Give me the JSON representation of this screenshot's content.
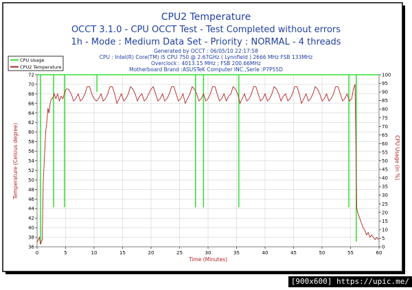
{
  "chart_data": {
    "type": "line",
    "title": "CPU2 Temperature",
    "subtitle_lines": [
      "OCCT 3.1.0 - CPU OCCT Test - Test Completed without errors",
      "1h - Mode : Medium Data Set - Priority : NORMAL - 4 threads"
    ],
    "info_lines": [
      "Generated by OCCT : 06/05/10 22:17:58",
      "CPU : Intel(R) Core(TM) i5 CPU 750 @ 2.67GHz ( Lynnfield ) 2666 MHz FSB 133MHz",
      "Overclock : 4013.15 MHz ; FSB 200.66MHz",
      "Motherboard Brand :ASUSTeK Computer INC.,Serie :P7P55D"
    ],
    "xlabel": "Time (Minutes)",
    "ylabel_left": "Temperature (Celsius degree)",
    "ylabel_right": "CPU Usage (in %)",
    "xlim": [
      0,
      60
    ],
    "ylim_left": [
      36,
      72
    ],
    "ylim_right": [
      0,
      100
    ],
    "x_ticks": [
      "0",
      "5",
      "10",
      "15",
      "20",
      "25",
      "30",
      "35",
      "40",
      "45",
      "50",
      "55",
      "60"
    ],
    "y_ticks_left": [
      "36",
      "38",
      "40",
      "42",
      "44",
      "46",
      "48",
      "50",
      "52",
      "54",
      "56",
      "58",
      "60",
      "62",
      "64",
      "66",
      "68",
      "70",
      "72"
    ],
    "y_ticks_right": [
      "0",
      "5",
      "10",
      "15",
      "20",
      "25",
      "30",
      "35",
      "40",
      "45",
      "50",
      "55",
      "60",
      "65",
      "70",
      "75",
      "80",
      "85",
      "90",
      "95",
      "100"
    ],
    "grid": true,
    "legend_position": "top-left",
    "series": [
      {
        "name": "CPU Usage",
        "axis": "right",
        "color": "#33dd33",
        "baseline": 100,
        "dips": [
          {
            "x": 0.6,
            "y": 2
          },
          {
            "x": 2.9,
            "y": 23
          },
          {
            "x": 4.8,
            "y": 23
          },
          {
            "x": 10.5,
            "y": 90
          },
          {
            "x": 27.8,
            "y": 23
          },
          {
            "x": 29.2,
            "y": 23
          },
          {
            "x": 35.4,
            "y": 23
          },
          {
            "x": 54.7,
            "y": 23
          },
          {
            "x": 56.0,
            "y": 3
          }
        ]
      },
      {
        "name": "CPU2 Temperature",
        "axis": "left",
        "color": "#b22222",
        "points": [
          [
            0.0,
            37
          ],
          [
            0.4,
            38
          ],
          [
            0.6,
            36.5
          ],
          [
            0.9,
            37.5
          ],
          [
            1.1,
            50
          ],
          [
            1.3,
            55
          ],
          [
            1.5,
            60
          ],
          [
            1.7,
            62
          ],
          [
            1.9,
            65
          ],
          [
            2.1,
            64
          ],
          [
            2.3,
            66
          ],
          [
            2.5,
            67
          ],
          [
            2.7,
            67
          ],
          [
            3.0,
            68
          ],
          [
            3.3,
            67
          ],
          [
            3.6,
            68
          ],
          [
            3.9,
            66.5
          ],
          [
            4.2,
            67.5
          ],
          [
            4.5,
            67
          ],
          [
            4.8,
            68
          ],
          [
            5.1,
            69
          ],
          [
            5.5,
            69
          ],
          [
            6.0,
            68
          ],
          [
            6.4,
            66.5
          ],
          [
            6.8,
            67
          ],
          [
            7.2,
            68
          ],
          [
            7.6,
            66.5
          ],
          [
            8.0,
            67
          ],
          [
            8.4,
            68
          ],
          [
            8.8,
            69.5
          ],
          [
            9.2,
            69.5
          ],
          [
            9.6,
            68
          ],
          [
            10.0,
            67
          ],
          [
            10.4,
            66.5
          ],
          [
            10.8,
            67
          ],
          [
            11.2,
            68
          ],
          [
            11.6,
            66.5
          ],
          [
            12.0,
            67
          ],
          [
            12.4,
            68
          ],
          [
            12.8,
            69.5
          ],
          [
            13.2,
            69.5
          ],
          [
            13.6,
            68
          ],
          [
            14.0,
            66
          ],
          [
            14.4,
            67
          ],
          [
            14.8,
            68
          ],
          [
            15.2,
            66.5
          ],
          [
            15.6,
            67
          ],
          [
            16.0,
            68
          ],
          [
            16.4,
            69.5
          ],
          [
            16.8,
            69
          ],
          [
            17.2,
            68
          ],
          [
            17.6,
            66.5
          ],
          [
            18.0,
            67.5
          ],
          [
            18.4,
            68
          ],
          [
            18.8,
            66.5
          ],
          [
            19.2,
            67
          ],
          [
            19.6,
            68
          ],
          [
            20.0,
            69
          ],
          [
            20.4,
            69.5
          ],
          [
            20.8,
            68
          ],
          [
            21.2,
            66.5
          ],
          [
            21.6,
            67
          ],
          [
            22.0,
            68
          ],
          [
            22.4,
            66.5
          ],
          [
            22.8,
            67
          ],
          [
            23.2,
            68
          ],
          [
            23.6,
            69.5
          ],
          [
            24.0,
            69.5
          ],
          [
            24.4,
            68
          ],
          [
            24.8,
            66.5
          ],
          [
            25.2,
            67
          ],
          [
            25.6,
            68
          ],
          [
            26.0,
            66
          ],
          [
            26.4,
            67
          ],
          [
            26.8,
            68
          ],
          [
            27.2,
            69.5
          ],
          [
            27.6,
            69
          ],
          [
            28.0,
            68
          ],
          [
            28.4,
            66.5
          ],
          [
            28.8,
            67
          ],
          [
            29.2,
            68
          ],
          [
            29.6,
            66.5
          ],
          [
            30.0,
            67
          ],
          [
            30.4,
            68
          ],
          [
            30.8,
            69.5
          ],
          [
            31.2,
            69.5
          ],
          [
            31.6,
            68
          ],
          [
            32.0,
            66.5
          ],
          [
            32.4,
            67
          ],
          [
            32.8,
            68
          ],
          [
            33.2,
            66.5
          ],
          [
            33.6,
            67.5
          ],
          [
            34.0,
            68
          ],
          [
            34.4,
            69.5
          ],
          [
            34.8,
            69
          ],
          [
            35.2,
            68
          ],
          [
            35.6,
            66
          ],
          [
            36.0,
            67
          ],
          [
            36.4,
            68
          ],
          [
            36.8,
            66.5
          ],
          [
            37.2,
            67
          ],
          [
            37.6,
            68
          ],
          [
            38.0,
            69.5
          ],
          [
            38.4,
            69.5
          ],
          [
            38.8,
            68
          ],
          [
            39.2,
            66.5
          ],
          [
            39.6,
            67
          ],
          [
            40.0,
            68
          ],
          [
            40.4,
            66.5
          ],
          [
            40.8,
            67
          ],
          [
            41.2,
            68
          ],
          [
            41.6,
            69.5
          ],
          [
            42.0,
            69
          ],
          [
            42.4,
            68
          ],
          [
            42.8,
            66.5
          ],
          [
            43.2,
            67.5
          ],
          [
            43.6,
            68
          ],
          [
            44.0,
            66.5
          ],
          [
            44.4,
            67
          ],
          [
            44.8,
            68
          ],
          [
            45.2,
            69.5
          ],
          [
            45.6,
            69.5
          ],
          [
            46.0,
            68
          ],
          [
            46.4,
            66
          ],
          [
            46.8,
            67
          ],
          [
            47.2,
            68
          ],
          [
            47.6,
            66.5
          ],
          [
            48.0,
            67
          ],
          [
            48.4,
            68
          ],
          [
            48.8,
            69.5
          ],
          [
            49.2,
            69
          ],
          [
            49.6,
            68
          ],
          [
            50.0,
            66.5
          ],
          [
            50.4,
            67
          ],
          [
            50.8,
            68
          ],
          [
            51.2,
            66.5
          ],
          [
            51.6,
            67
          ],
          [
            52.0,
            68
          ],
          [
            52.4,
            69.5
          ],
          [
            52.8,
            69.5
          ],
          [
            53.2,
            68
          ],
          [
            53.6,
            66.5
          ],
          [
            54.0,
            67
          ],
          [
            54.4,
            68
          ],
          [
            54.8,
            66.5
          ],
          [
            55.2,
            67
          ],
          [
            55.5,
            69
          ],
          [
            55.8,
            70
          ],
          [
            56.0,
            52
          ],
          [
            56.1,
            44
          ],
          [
            56.3,
            43
          ],
          [
            56.6,
            42
          ],
          [
            56.9,
            41
          ],
          [
            57.2,
            40
          ],
          [
            57.5,
            39.5
          ],
          [
            57.8,
            38.5
          ],
          [
            58.1,
            39
          ],
          [
            58.4,
            38
          ],
          [
            58.7,
            38.5
          ],
          [
            59.0,
            38
          ],
          [
            59.3,
            37.5
          ],
          [
            59.6,
            38
          ],
          [
            59.9,
            37.5
          ]
        ]
      }
    ]
  },
  "overlay": {
    "stamp": "[900x600] https://upic.me/"
  },
  "colors": {
    "title": "#1f3fa0",
    "info": "#1f3fa0",
    "axis_left_label": "#b22222",
    "axis_right_label": "#b22222",
    "x_label": "#b22222",
    "grid": "#c8c8c8",
    "plot_bg": "#ffffff"
  }
}
